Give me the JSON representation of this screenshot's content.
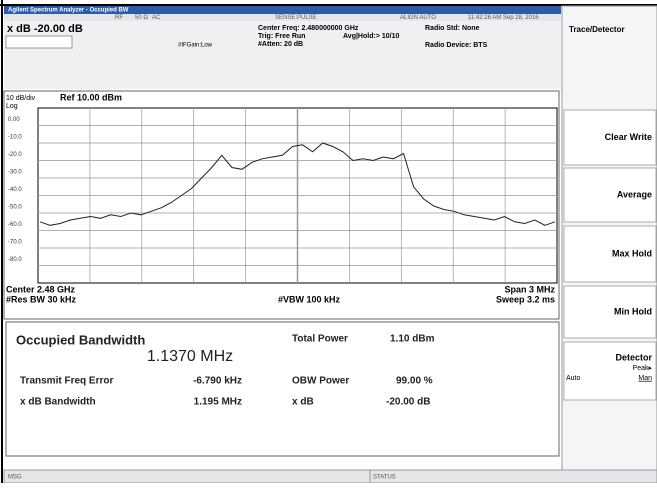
{
  "title_bar": "Agilent Spectrum Analyzer - Occupied BW",
  "status_bar": {
    "rf": "RF",
    "impedance": "50 Ω",
    "coupling": "AC",
    "sense": "SENSE:PULSE",
    "align": "ALIGN AUTO",
    "datetime": "11:42:26 AM Sep 28, 2016"
  },
  "header": {
    "marker": "x dB -20.00 dB",
    "center_freq": "Center Freq: 2.480000000 GHz",
    "trig": "Trig: Free Run",
    "avg_hold": "Avg|Hold:> 10/10",
    "atten": "#Atten: 20 dB",
    "if_gain": "#IFGain:Low",
    "radio_std": "Radio Std: None",
    "radio_device": "Radio Device: BTS"
  },
  "graph": {
    "scale": "10 dB/div",
    "ref": "Ref 10.00 dBm",
    "log": "Log",
    "ylim": [
      -90,
      10
    ],
    "yticks": [
      {
        "value": 0,
        "label": "0.00"
      },
      {
        "value": -10,
        "label": "-10.0"
      },
      {
        "value": -20,
        "label": "-20.0"
      },
      {
        "value": -30,
        "label": "-30.0"
      },
      {
        "value": -40,
        "label": "-40.0"
      },
      {
        "value": -50,
        "label": "-50.0"
      },
      {
        "value": -60,
        "label": "-60.0"
      },
      {
        "value": -70,
        "label": "-70.0"
      },
      {
        "value": -80,
        "label": "-80.0"
      }
    ],
    "trace": [
      -55,
      -57,
      -56,
      -54,
      -53,
      -52,
      -53,
      -51,
      -52,
      -50,
      -51,
      -49,
      -47,
      -44,
      -40,
      -36,
      -30,
      -24,
      -17,
      -24,
      -25,
      -21,
      -19,
      -18,
      -17,
      -12,
      -11,
      -15,
      -10,
      -12,
      -15,
      -20,
      -19,
      -20,
      -18,
      -19,
      -16,
      -35,
      -42,
      -46,
      -48,
      -49,
      -51,
      -52,
      -53,
      -54,
      -52,
      -55,
      -56,
      -54,
      -57,
      -55
    ]
  },
  "footer": {
    "center": "Center 2.48 GHz",
    "res_bw": "#Res BW 30 kHz",
    "vbw": "#VBW 100 kHz",
    "span": "Span 3 MHz",
    "sweep": "Sweep 3.2 ms"
  },
  "results": {
    "title": "Occupied Bandwidth",
    "obw": "1.1370 MHz",
    "total_power_label": "Total Power",
    "total_power": "1.10 dBm",
    "freq_error_label": "Transmit Freq Error",
    "freq_error": "-6.790 kHz",
    "obw_power_label": "OBW Power",
    "obw_power": "99.00 %",
    "xdb_bw_label": "x dB Bandwidth",
    "xdb_bw": "1.195 MHz",
    "xdb_label": "x dB",
    "xdb": "-20.00 dB"
  },
  "softkeys": {
    "menu_title": "Trace/Detector",
    "keys": [
      "Clear Write",
      "Average",
      "Max Hold",
      "Min Hold"
    ],
    "detector": {
      "label": "Detector",
      "value": "Peak▸",
      "auto": "Auto",
      "man": "Man"
    }
  },
  "message_bar": {
    "msg": "MSG",
    "status": "STATUS"
  }
}
